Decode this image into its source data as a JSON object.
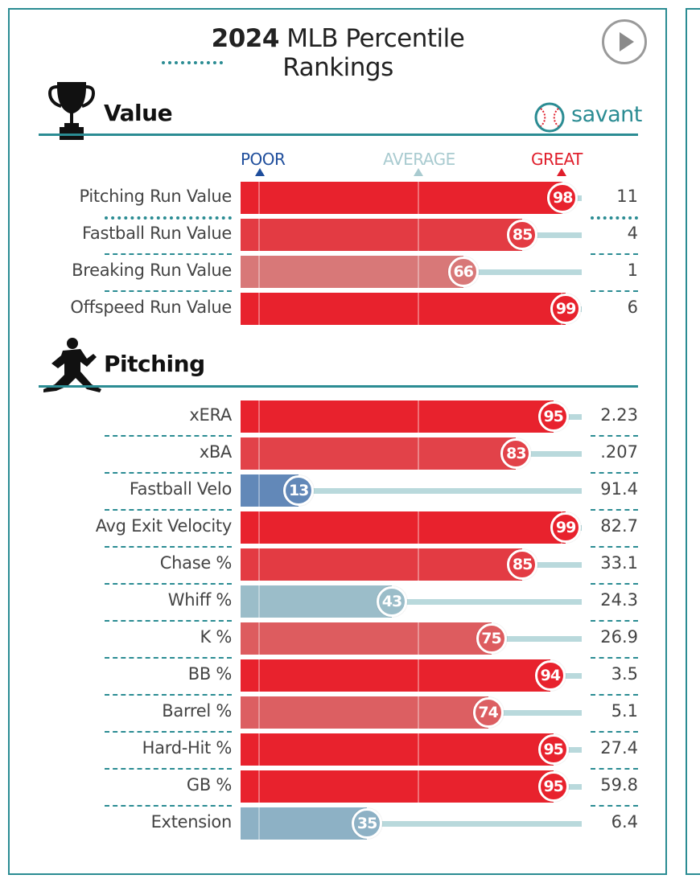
{
  "header": {
    "title_year": "2024",
    "title_rest": " MLB Percentile Rankings",
    "play_icon": "play-icon"
  },
  "brand": {
    "name": "savant",
    "icon": "baseball-icon",
    "color": "#2b8c93"
  },
  "scale": {
    "poor": "POOR",
    "average": "AVERAGE",
    "great": "GREAT"
  },
  "sections": [
    {
      "title": "Value",
      "icon": "trophy-icon",
      "metrics": [
        {
          "label": "Pitching Run Value",
          "percentile": 98,
          "value": "11"
        },
        {
          "label": "Fastball Run Value",
          "percentile": 85,
          "value": "4"
        },
        {
          "label": "Breaking Run Value",
          "percentile": 66,
          "value": "1"
        },
        {
          "label": "Offspeed Run Value",
          "percentile": 99,
          "value": "6"
        }
      ]
    },
    {
      "title": "Pitching",
      "icon": "pitcher-silhouette-icon",
      "metrics": [
        {
          "label": "xERA",
          "percentile": 95,
          "value": "2.23"
        },
        {
          "label": "xBA",
          "percentile": 83,
          "value": ".207"
        },
        {
          "label": "Fastball Velo",
          "percentile": 13,
          "value": "91.4"
        },
        {
          "label": "Avg Exit Velocity",
          "percentile": 99,
          "value": "82.7"
        },
        {
          "label": "Chase %",
          "percentile": 85,
          "value": "33.1"
        },
        {
          "label": "Whiff %",
          "percentile": 43,
          "value": "24.3"
        },
        {
          "label": "K %",
          "percentile": 75,
          "value": "26.9"
        },
        {
          "label": "BB %",
          "percentile": 94,
          "value": "3.5"
        },
        {
          "label": "Barrel %",
          "percentile": 74,
          "value": "5.1"
        },
        {
          "label": "Hard-Hit %",
          "percentile": 95,
          "value": "27.4"
        },
        {
          "label": "GB %",
          "percentile": 95,
          "value": "59.8"
        },
        {
          "label": "Extension",
          "percentile": 35,
          "value": "6.4"
        }
      ]
    }
  ],
  "chart_data": {
    "type": "bar",
    "title": "2024 MLB Percentile Rankings",
    "orientation": "horizontal",
    "xlim": [
      0,
      100
    ],
    "categories": [
      "Pitching Run Value",
      "Fastball Run Value",
      "Breaking Run Value",
      "Offspeed Run Value",
      "xERA",
      "xBA",
      "Fastball Velo",
      "Avg Exit Velocity",
      "Chase %",
      "Whiff %",
      "K %",
      "BB %",
      "Barrel %",
      "Hard-Hit %",
      "GB %",
      "Extension"
    ],
    "values": [
      98,
      85,
      66,
      99,
      95,
      83,
      13,
      99,
      85,
      43,
      75,
      94,
      74,
      95,
      95,
      35
    ],
    "stat_values": [
      "11",
      "4",
      "1",
      "6",
      "2.23",
      ".207",
      "91.4",
      "82.7",
      "33.1",
      "24.3",
      "26.9",
      "3.5",
      "5.1",
      "27.4",
      "59.8",
      "6.4"
    ]
  }
}
